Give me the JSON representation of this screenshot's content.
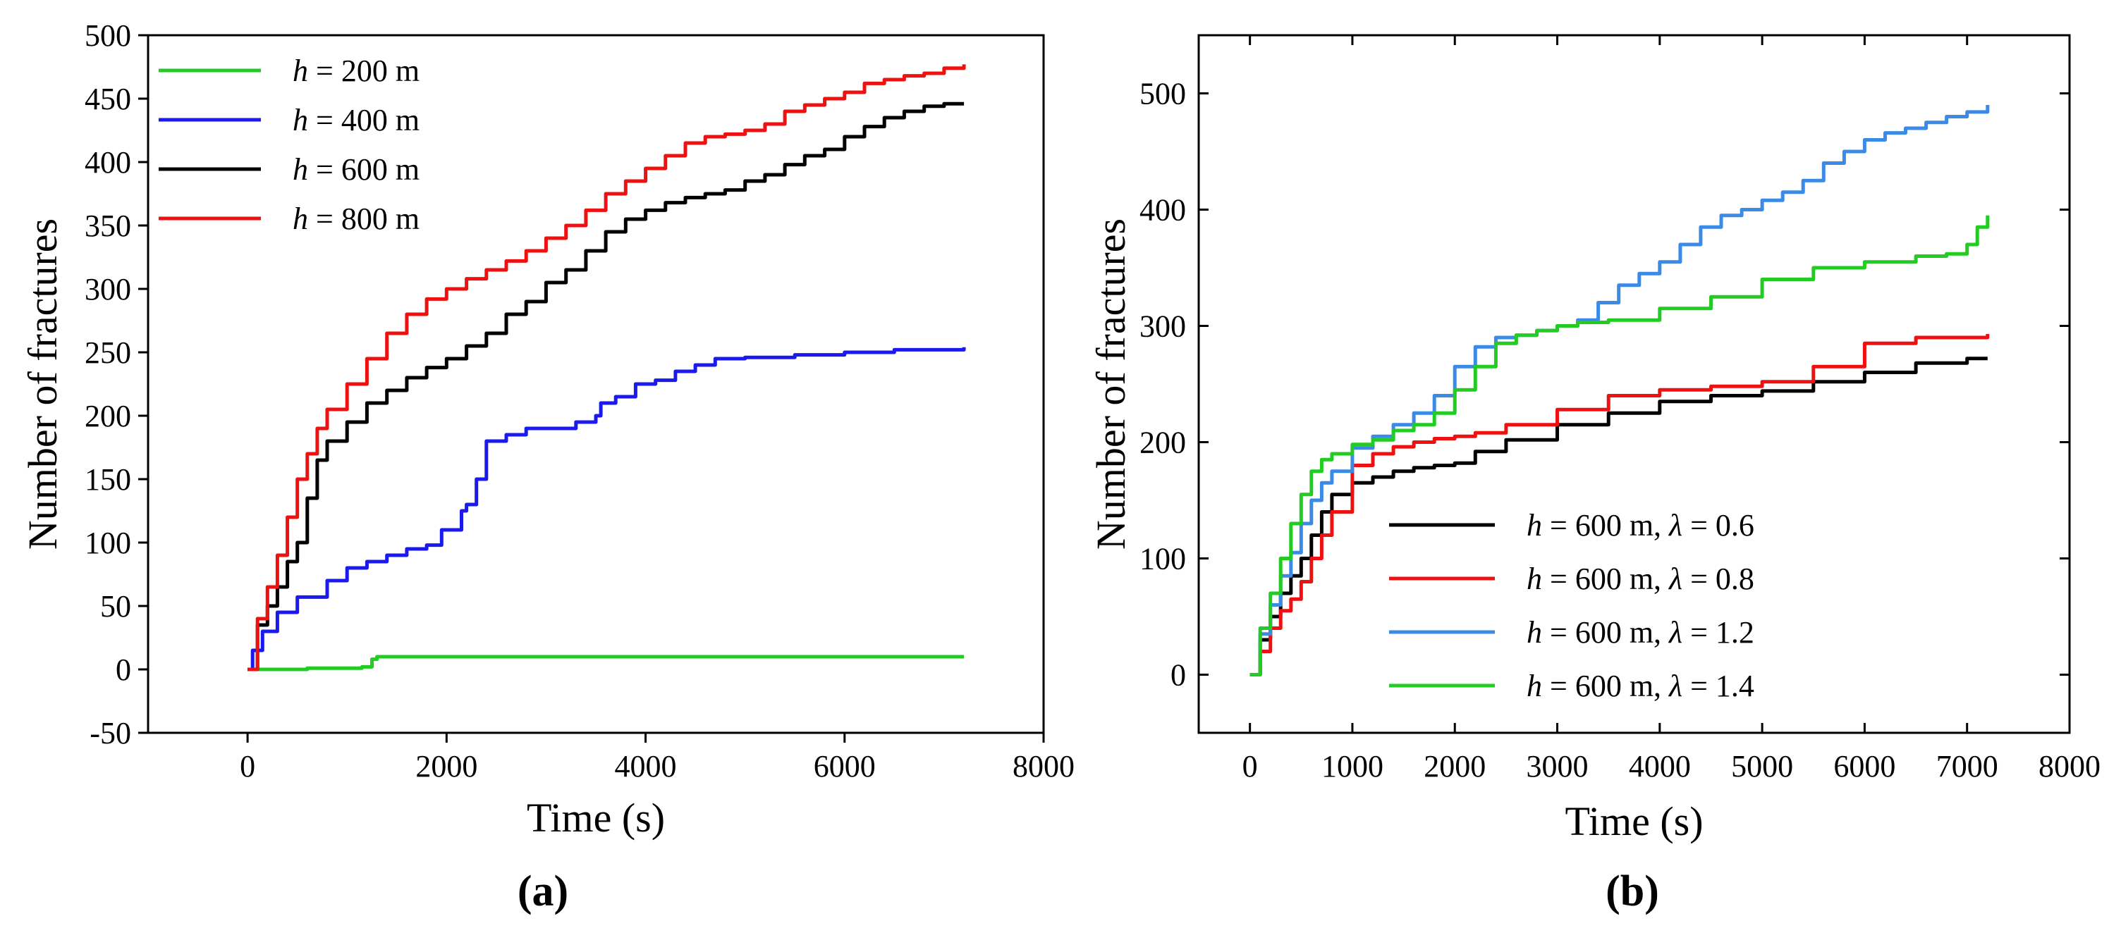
{
  "chart_data": [
    {
      "panel_label": "(a)",
      "type": "line",
      "xlabel": "Time (s)",
      "ylabel": "Number of fractures",
      "xlim": [
        -1000,
        8000
      ],
      "ylim": [
        -50,
        500
      ],
      "x_ticks": [
        0,
        2000,
        4000,
        6000,
        8000
      ],
      "y_ticks": [
        -50,
        0,
        50,
        100,
        150,
        200,
        250,
        300,
        350,
        400,
        450,
        500
      ],
      "legend_position": "top-left",
      "series": [
        {
          "name": "h = 200 m",
          "legend_var": "h",
          "legend_rest": " = 200 m",
          "color": "#22cc22",
          "x": [
            0,
            300,
            600,
            1000,
            1150,
            1250,
            1300,
            2000,
            4000,
            6000,
            7200
          ],
          "y": [
            0,
            0,
            1,
            1,
            2,
            8,
            10,
            10,
            10,
            10,
            10
          ]
        },
        {
          "name": "h = 400 m",
          "legend_var": "h",
          "legend_rest": " = 400 m",
          "color": "#1a1aee",
          "x": [
            0,
            50,
            150,
            300,
            500,
            800,
            1000,
            1200,
            1400,
            1600,
            1800,
            1950,
            2050,
            2150,
            2200,
            2300,
            2400,
            2600,
            2800,
            3000,
            3300,
            3500,
            3550,
            3700,
            3900,
            4100,
            4300,
            4500,
            4700,
            5000,
            5500,
            6000,
            6500,
            7200
          ],
          "y": [
            0,
            15,
            30,
            45,
            57,
            70,
            80,
            85,
            90,
            95,
            98,
            110,
            110,
            125,
            130,
            150,
            180,
            185,
            190,
            190,
            195,
            200,
            210,
            215,
            225,
            228,
            235,
            240,
            245,
            246,
            248,
            250,
            252,
            254
          ]
        },
        {
          "name": "h = 600 m",
          "legend_var": "h",
          "legend_rest": " = 600 m",
          "color": "#000000",
          "x": [
            0,
            100,
            200,
            300,
            400,
            500,
            600,
            700,
            800,
            1000,
            1200,
            1400,
            1600,
            1800,
            2000,
            2200,
            2400,
            2600,
            2800,
            3000,
            3200,
            3400,
            3600,
            3800,
            4000,
            4200,
            4400,
            4600,
            4800,
            5000,
            5200,
            5400,
            5600,
            5800,
            6000,
            6200,
            6400,
            6600,
            6800,
            7000,
            7200
          ],
          "y": [
            0,
            35,
            50,
            65,
            85,
            100,
            135,
            165,
            180,
            195,
            210,
            220,
            230,
            238,
            245,
            255,
            265,
            280,
            290,
            305,
            315,
            330,
            345,
            355,
            362,
            368,
            372,
            375,
            378,
            385,
            390,
            398,
            405,
            410,
            420,
            428,
            435,
            440,
            444,
            446,
            446
          ]
        },
        {
          "name": "h = 800 m",
          "legend_var": "h",
          "legend_rest": " = 800 m",
          "color": "#ee1111",
          "x": [
            0,
            100,
            200,
            300,
            400,
            500,
            600,
            700,
            800,
            1000,
            1200,
            1400,
            1600,
            1800,
            2000,
            2200,
            2400,
            2600,
            2800,
            3000,
            3200,
            3400,
            3600,
            3800,
            4000,
            4200,
            4400,
            4600,
            4800,
            5000,
            5200,
            5400,
            5600,
            5800,
            6000,
            6200,
            6400,
            6600,
            6800,
            7000,
            7200
          ],
          "y": [
            0,
            40,
            65,
            90,
            120,
            150,
            170,
            190,
            205,
            225,
            245,
            265,
            280,
            292,
            300,
            308,
            315,
            322,
            330,
            340,
            350,
            362,
            375,
            385,
            395,
            405,
            415,
            420,
            422,
            425,
            430,
            440,
            445,
            450,
            455,
            462,
            465,
            468,
            470,
            474,
            477
          ]
        }
      ]
    },
    {
      "panel_label": "(b)",
      "type": "line",
      "xlabel": "Time (s)",
      "ylabel": "Number of fractures",
      "xlim": [
        -500,
        8000
      ],
      "ylim": [
        -50,
        550
      ],
      "x_ticks": [
        0,
        1000,
        2000,
        3000,
        4000,
        5000,
        6000,
        7000,
        8000
      ],
      "y_ticks": [
        0,
        100,
        200,
        300,
        400,
        500
      ],
      "legend_position": "bottom-right",
      "series": [
        {
          "name": "h = 600 m, λ = 0.6",
          "legend_var": "h",
          "legend_rest": " = 600 m, ",
          "legend_var2": "λ",
          "legend_rest2": " = 0.6",
          "color": "#000000",
          "x": [
            0,
            100,
            200,
            300,
            400,
            500,
            600,
            700,
            800,
            1000,
            1200,
            1400,
            1600,
            1800,
            2000,
            2200,
            2500,
            3000,
            3500,
            4000,
            4500,
            5000,
            5500,
            6000,
            6500,
            7000,
            7200
          ],
          "y": [
            0,
            30,
            50,
            70,
            85,
            100,
            120,
            140,
            155,
            165,
            170,
            175,
            178,
            180,
            182,
            192,
            202,
            215,
            225,
            235,
            240,
            244,
            252,
            260,
            268,
            272,
            272
          ]
        },
        {
          "name": "h = 600 m, λ = 0.8",
          "legend_var": "h",
          "legend_rest": " = 600 m, ",
          "legend_var2": "λ",
          "legend_rest2": " = 0.8",
          "color": "#ee1111",
          "x": [
            0,
            100,
            200,
            300,
            400,
            500,
            600,
            700,
            800,
            1000,
            1200,
            1400,
            1600,
            1800,
            2000,
            2200,
            2500,
            3000,
            3500,
            4000,
            4500,
            5000,
            5500,
            6000,
            6500,
            7000,
            7200
          ],
          "y": [
            0,
            20,
            40,
            55,
            65,
            80,
            100,
            120,
            140,
            180,
            190,
            196,
            200,
            203,
            205,
            208,
            215,
            228,
            240,
            245,
            248,
            252,
            265,
            285,
            290,
            290,
            293
          ]
        },
        {
          "name": "h = 600 m, λ = 1.2",
          "legend_var": "h",
          "legend_rest": " = 600 m, ",
          "legend_var2": "λ",
          "legend_rest2": " = 1.2",
          "color": "#3a8ae6",
          "x": [
            0,
            100,
            200,
            300,
            400,
            500,
            600,
            700,
            800,
            1000,
            1200,
            1400,
            1600,
            1800,
            2000,
            2200,
            2400,
            2600,
            2800,
            3000,
            3200,
            3400,
            3600,
            3800,
            4000,
            4200,
            4400,
            4600,
            4800,
            5000,
            5200,
            5400,
            5600,
            5800,
            6000,
            6200,
            6400,
            6600,
            6800,
            7000,
            7200
          ],
          "y": [
            0,
            35,
            60,
            85,
            105,
            130,
            150,
            165,
            175,
            195,
            205,
            215,
            225,
            240,
            265,
            282,
            290,
            292,
            296,
            300,
            305,
            320,
            335,
            345,
            355,
            370,
            385,
            395,
            400,
            408,
            415,
            425,
            440,
            450,
            460,
            466,
            470,
            475,
            480,
            484,
            490
          ]
        },
        {
          "name": "h = 600 m, λ = 1.4",
          "legend_var": "h",
          "legend_rest": " = 600 m, ",
          "legend_var2": "λ",
          "legend_rest2": " = 1.4",
          "color": "#22cc22",
          "x": [
            0,
            100,
            200,
            300,
            400,
            500,
            600,
            700,
            800,
            1000,
            1200,
            1400,
            1600,
            1800,
            2000,
            2200,
            2400,
            2600,
            2800,
            3000,
            3200,
            3500,
            4000,
            4500,
            5000,
            5500,
            6000,
            6500,
            6800,
            7000,
            7100,
            7200
          ],
          "y": [
            0,
            40,
            70,
            100,
            130,
            155,
            175,
            185,
            190,
            198,
            202,
            210,
            215,
            225,
            245,
            265,
            285,
            292,
            296,
            300,
            303,
            305,
            315,
            325,
            340,
            350,
            355,
            360,
            362,
            370,
            385,
            395
          ]
        }
      ]
    }
  ]
}
